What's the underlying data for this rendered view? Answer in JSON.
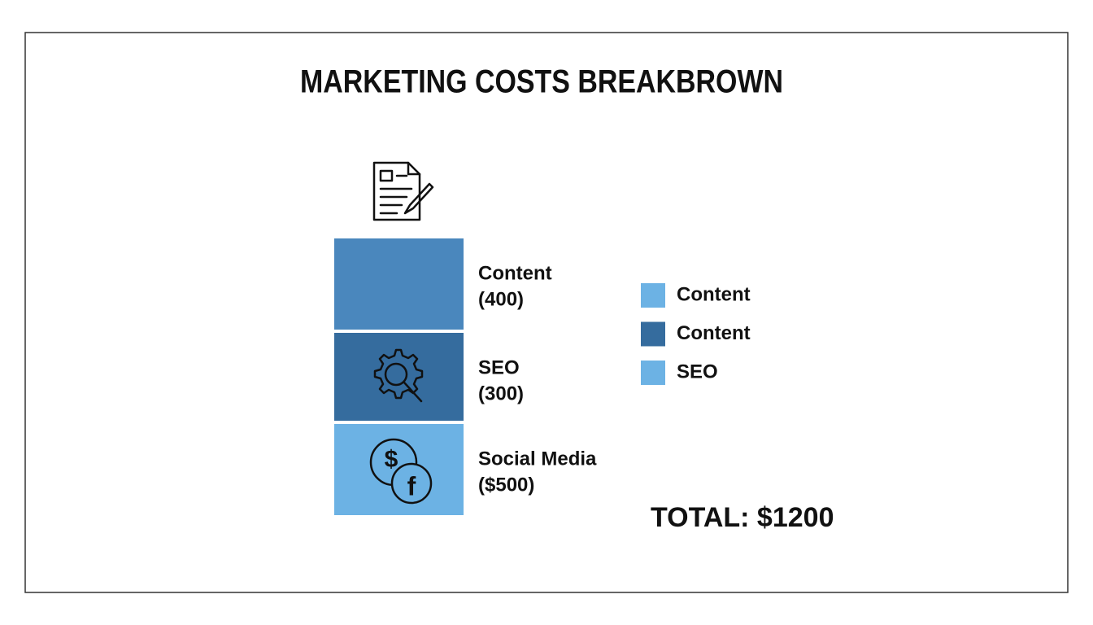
{
  "title": "MARKETING COSTS BREAKBROWN",
  "blocks": [
    {
      "label": "Content",
      "amount": "(400)",
      "color": "#4a87bd"
    },
    {
      "label": "SEO",
      "amount": "(300)",
      "color": "#356c9e"
    },
    {
      "label": "Social Media",
      "amount": "($500)",
      "color": "#6cb2e4"
    }
  ],
  "legend": [
    {
      "label": "Content",
      "color": "#6cb2e4"
    },
    {
      "label": "Content",
      "color": "#356c9e"
    },
    {
      "label": "SEO",
      "color": "#6cb2e4"
    }
  ],
  "total": "TOTAL: $1200"
}
